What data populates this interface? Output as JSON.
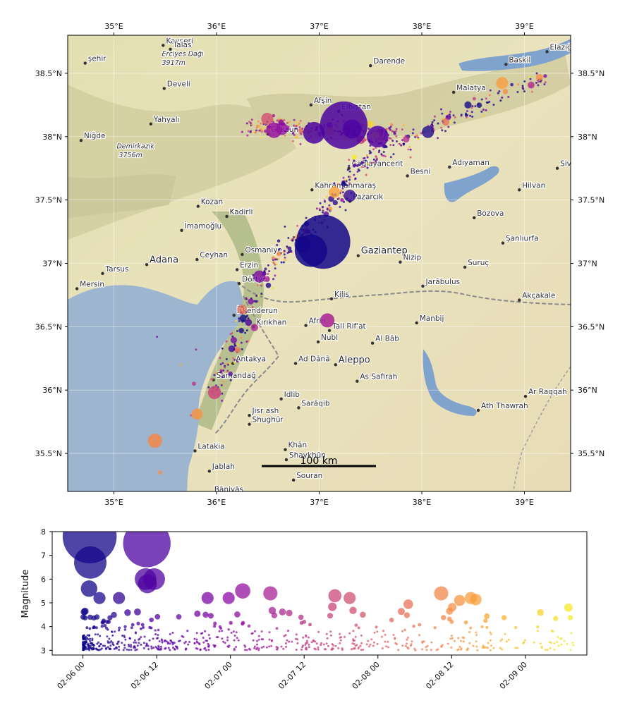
{
  "map": {
    "lon_range": [
      34.55,
      39.45
    ],
    "lat_range": [
      35.2,
      38.8
    ],
    "lon_ticks": [
      35,
      36,
      37,
      38,
      39
    ],
    "lat_ticks": [
      35.5,
      36,
      36.5,
      37,
      37.5,
      38,
      38.5
    ],
    "lon_tick_labels": [
      "35°E",
      "36°E",
      "37°E",
      "38°E",
      "39°E"
    ],
    "lat_tick_labels": [
      "35.5°N",
      "36°N",
      "36.5°N",
      "37°N",
      "37.5°N",
      "38°N",
      "38.5°N"
    ],
    "scale_bar_label": "100 km",
    "colors": {
      "sea": "#9db5cf",
      "land": "#e6e0b4",
      "lake": "#7fa3cc",
      "border": "#8a8a8a"
    },
    "places": [
      {
        "name": "Kayseri",
        "lon": 35.48,
        "lat": 38.72
      },
      {
        "name": "Talas",
        "lon": 35.55,
        "lat": 38.69
      },
      {
        "name": "Erciyes Dağı",
        "lon": 35.44,
        "lat": 38.62,
        "peak": true
      },
      {
        "name": "3917m",
        "lon": 35.44,
        "lat": 38.55,
        "peak": true
      },
      {
        "name": "şehir",
        "lon": 34.72,
        "lat": 38.58
      },
      {
        "name": "Develi",
        "lon": 35.49,
        "lat": 38.38
      },
      {
        "name": "Yahyalı",
        "lon": 35.36,
        "lat": 38.1
      },
      {
        "name": "Niğde",
        "lon": 34.68,
        "lat": 37.97
      },
      {
        "name": "Demirkazık",
        "lon": 35.0,
        "lat": 37.89,
        "peak": true
      },
      {
        "name": "3756m",
        "lon": 35.02,
        "lat": 37.82,
        "peak": true
      },
      {
        "name": "Darende",
        "lon": 37.5,
        "lat": 38.56
      },
      {
        "name": "Baskil",
        "lon": 38.82,
        "lat": 38.57
      },
      {
        "name": "Elazığ",
        "lon": 39.22,
        "lat": 38.67
      },
      {
        "name": "Malatya",
        "lon": 38.31,
        "lat": 38.35
      },
      {
        "name": "Afşin",
        "lon": 36.92,
        "lat": 38.25
      },
      {
        "name": "Elbistan",
        "lon": 37.19,
        "lat": 38.2
      },
      {
        "name": "Göksun",
        "lon": 36.5,
        "lat": 38.02
      },
      {
        "name": "Çağlayancerit",
        "lon": 37.29,
        "lat": 37.75
      },
      {
        "name": "Adıyaman",
        "lon": 38.27,
        "lat": 37.76
      },
      {
        "name": "Besni",
        "lon": 37.86,
        "lat": 37.69
      },
      {
        "name": "Siverek",
        "lon": 39.32,
        "lat": 37.75
      },
      {
        "name": "Hilvan",
        "lon": 38.95,
        "lat": 37.58
      },
      {
        "name": "Kahramanmaraş",
        "lon": 36.93,
        "lat": 37.58
      },
      {
        "name": "Pazarcık",
        "lon": 37.3,
        "lat": 37.49
      },
      {
        "name": "Kozan",
        "lon": 35.82,
        "lat": 37.45
      },
      {
        "name": "Kadirli",
        "lon": 36.1,
        "lat": 37.37
      },
      {
        "name": "Bozova",
        "lon": 38.51,
        "lat": 37.36
      },
      {
        "name": "İmamoğlu",
        "lon": 35.66,
        "lat": 37.26
      },
      {
        "name": "Şanlıurfa",
        "lon": 38.79,
        "lat": 37.16
      },
      {
        "name": "Adana",
        "lon": 35.32,
        "lat": 36.99,
        "big": true
      },
      {
        "name": "Gaziantep",
        "lon": 37.38,
        "lat": 37.06,
        "big": true
      },
      {
        "name": "Nizip",
        "lon": 37.79,
        "lat": 37.01
      },
      {
        "name": "Suruç",
        "lon": 38.42,
        "lat": 36.97
      },
      {
        "name": "Tarsus",
        "lon": 34.89,
        "lat": 36.92
      },
      {
        "name": "Ceyhan",
        "lon": 35.81,
        "lat": 37.03
      },
      {
        "name": "Osmaniye",
        "lon": 36.25,
        "lat": 37.07
      },
      {
        "name": "Mersin",
        "lon": 34.64,
        "lat": 36.8
      },
      {
        "name": "Erzin",
        "lon": 36.2,
        "lat": 36.95
      },
      {
        "name": "Dörtyol",
        "lon": 36.22,
        "lat": 36.84
      },
      {
        "name": "Jarābulus",
        "lon": 38.01,
        "lat": 36.82
      },
      {
        "name": "Akçakale",
        "lon": 38.95,
        "lat": 36.71
      },
      {
        "name": "Kilis",
        "lon": 37.12,
        "lat": 36.72
      },
      {
        "name": "İskenderun",
        "lon": 36.17,
        "lat": 36.59
      },
      {
        "name": "Afrin",
        "lon": 36.87,
        "lat": 36.51
      },
      {
        "name": "Tall Rif'at",
        "lon": 37.1,
        "lat": 36.47
      },
      {
        "name": "Manbij",
        "lon": 37.95,
        "lat": 36.53
      },
      {
        "name": "Al Bāb",
        "lon": 37.52,
        "lat": 36.37
      },
      {
        "name": "Kırıkhan",
        "lon": 36.36,
        "lat": 36.5
      },
      {
        "name": "Nubl",
        "lon": 36.99,
        "lat": 36.38
      },
      {
        "name": "Antakya",
        "lon": 36.16,
        "lat": 36.21
      },
      {
        "name": "Aleppo",
        "lon": 37.16,
        "lat": 36.2,
        "big": true
      },
      {
        "name": "Ad Dānā",
        "lon": 36.77,
        "lat": 36.21
      },
      {
        "name": "As Safirah",
        "lon": 37.37,
        "lat": 36.07
      },
      {
        "name": "Samandağ",
        "lon": 35.97,
        "lat": 36.08
      },
      {
        "name": "Idlib",
        "lon": 36.63,
        "lat": 35.93
      },
      {
        "name": "Ar Raqqah",
        "lon": 39.01,
        "lat": 35.95
      },
      {
        "name": "Sarāqib",
        "lon": 36.8,
        "lat": 35.86
      },
      {
        "name": "Ath Thawrah",
        "lon": 38.55,
        "lat": 35.84
      },
      {
        "name": "Jisr ash",
        "lon": 36.32,
        "lat": 35.8
      },
      {
        "name": "Shughūr",
        "lon": 36.32,
        "lat": 35.73
      },
      {
        "name": "Latakia",
        "lon": 35.79,
        "lat": 35.52
      },
      {
        "name": "Khān",
        "lon": 36.67,
        "lat": 35.53
      },
      {
        "name": "Shaykhūn",
        "lon": 36.68,
        "lat": 35.45
      },
      {
        "name": "Jablah",
        "lon": 35.93,
        "lat": 35.36
      },
      {
        "name": "Souran",
        "lon": 36.75,
        "lat": 35.29
      },
      {
        "name": "Bāniyās",
        "lon": 35.95,
        "lat": 35.18
      }
    ]
  },
  "chart_data": {
    "type": "scatter",
    "ylabel": "Magnitude",
    "ylim": [
      2.8,
      8.0
    ],
    "y_ticks": [
      3,
      4,
      5,
      6,
      7,
      8
    ],
    "x_range_hours": [
      -5,
      82
    ],
    "x_ticks_hours": [
      0,
      12,
      24,
      36,
      48,
      60,
      72
    ],
    "x_tick_labels": [
      "02-06 00",
      "02-06 12",
      "02-07 00",
      "02-07 12",
      "02-08 00",
      "02-08 12",
      "02-09 00"
    ],
    "colormap": "plasma (time)",
    "major_events": [
      {
        "t_hours": 1.1,
        "mag": 7.8,
        "lon": 37.04,
        "lat": 37.17
      },
      {
        "t_hours": 1.2,
        "mag": 6.7,
        "lon": 36.92,
        "lat": 37.1
      },
      {
        "t_hours": 10.4,
        "mag": 7.5,
        "lon": 37.24,
        "lat": 38.09
      },
      {
        "t_hours": 10.2,
        "mag": 6.0,
        "lon": 36.95,
        "lat": 38.03
      },
      {
        "t_hours": 10.5,
        "mag": 5.8,
        "lon": 37.32,
        "lat": 38.06
      },
      {
        "t_hours": 11.6,
        "mag": 6.0,
        "lon": 37.57,
        "lat": 38.0
      },
      {
        "t_hours": 1.0,
        "mag": 5.6,
        "lon": 36.84,
        "lat": 37.15
      },
      {
        "t_hours": 26.0,
        "mag": 5.5,
        "lon": 36.56,
        "lat": 38.05
      },
      {
        "t_hours": 30.5,
        "mag": 5.4,
        "lon": 37.08,
        "lat": 36.55
      },
      {
        "t_hours": 41.0,
        "mag": 5.3,
        "lon": 35.98,
        "lat": 35.98
      },
      {
        "t_hours": 58.3,
        "mag": 5.4,
        "lon": 35.4,
        "lat": 35.6
      },
      {
        "t_hours": 61.3,
        "mag": 5.1,
        "lon": 35.81,
        "lat": 35.81
      },
      {
        "t_hours": 79.0,
        "mag": 4.8,
        "lon": 37.55,
        "lat": 38.01
      }
    ]
  }
}
